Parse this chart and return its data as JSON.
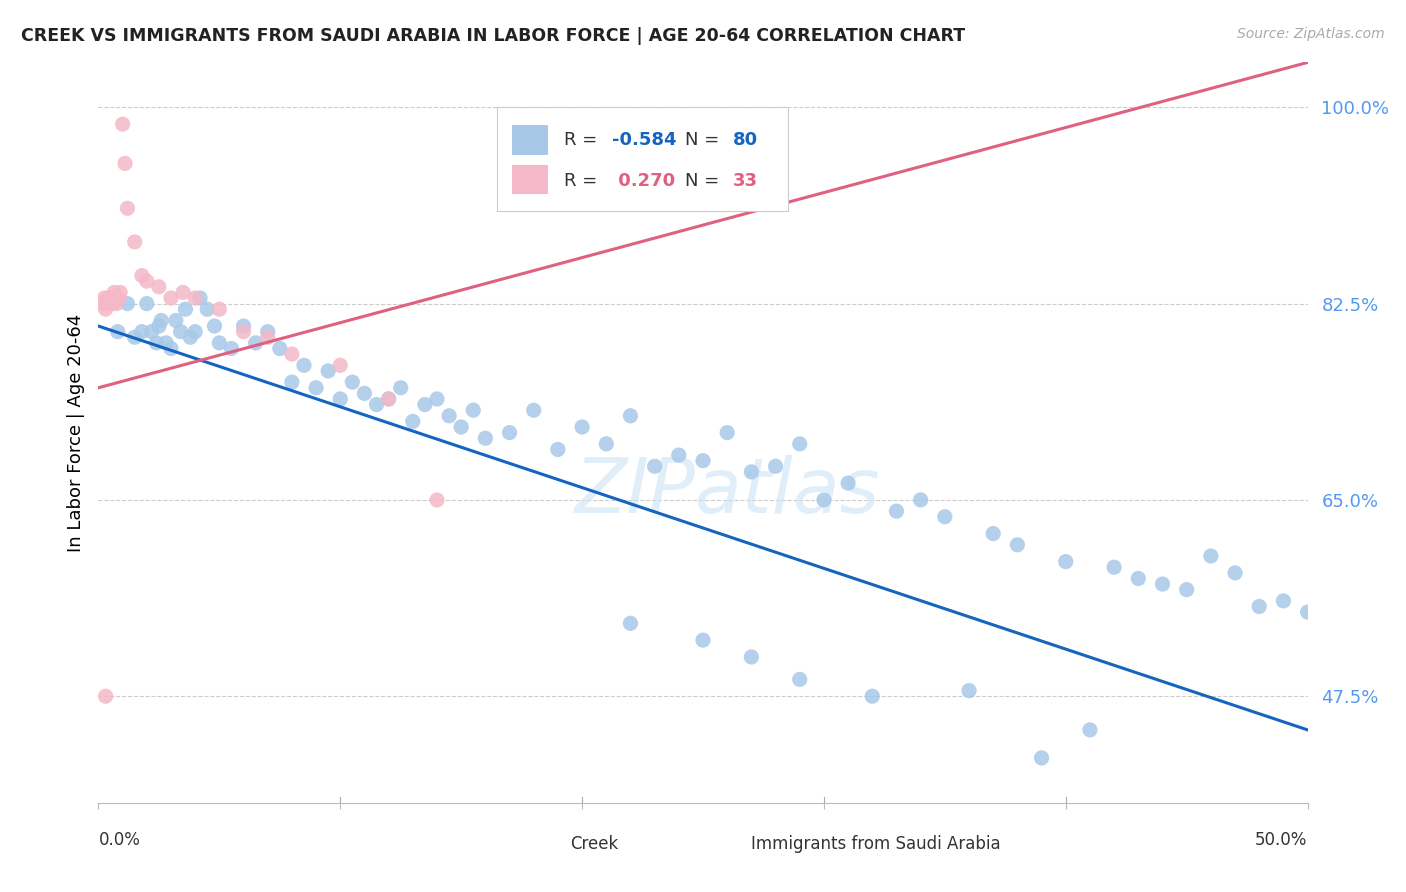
{
  "title": "CREEK VS IMMIGRANTS FROM SAUDI ARABIA IN LABOR FORCE | AGE 20-64 CORRELATION CHART",
  "source": "Source: ZipAtlas.com",
  "ylabel": "In Labor Force | Age 20-64",
  "x_range": [
    0.0,
    50.0
  ],
  "y_range": [
    38.0,
    104.0
  ],
  "y_ticks": [
    47.5,
    65.0,
    82.5,
    100.0
  ],
  "y_tick_labels": [
    "47.5%",
    "65.0%",
    "82.5%",
    "100.0%"
  ],
  "creek_color": "#a8c8e8",
  "creek_line_color": "#1565c0",
  "saudi_color": "#f4b8c8",
  "saudi_line_color": "#e06080",
  "creek_line_x0": 0.0,
  "creek_line_y0": 80.5,
  "creek_line_x1": 50.0,
  "creek_line_y1": 44.5,
  "saudi_line_x0": 0.0,
  "saudi_line_y0": 75.0,
  "saudi_line_x1": 50.0,
  "saudi_line_y1": 104.0,
  "creek_points_x": [
    0.8,
    1.2,
    1.5,
    1.8,
    2.0,
    2.2,
    2.4,
    2.5,
    2.6,
    2.8,
    3.0,
    3.2,
    3.4,
    3.6,
    3.8,
    4.0,
    4.2,
    4.5,
    4.8,
    5.0,
    5.5,
    6.0,
    6.5,
    7.0,
    7.5,
    8.0,
    8.5,
    9.0,
    9.5,
    10.0,
    10.5,
    11.0,
    11.5,
    12.0,
    12.5,
    13.0,
    13.5,
    14.0,
    14.5,
    15.0,
    15.5,
    16.0,
    17.0,
    18.0,
    19.0,
    20.0,
    21.0,
    22.0,
    23.0,
    24.0,
    25.0,
    26.0,
    27.0,
    28.0,
    29.0,
    30.0,
    31.0,
    33.0,
    34.0,
    35.0,
    37.0,
    38.0,
    40.0,
    42.0,
    43.0,
    44.0,
    45.0,
    46.0,
    47.0,
    48.0,
    49.0,
    50.0,
    22.0,
    25.0,
    27.0,
    29.0,
    32.0,
    36.0,
    39.0,
    41.0
  ],
  "creek_points_y": [
    80.0,
    82.5,
    79.5,
    80.0,
    82.5,
    80.0,
    79.0,
    80.5,
    81.0,
    79.0,
    78.5,
    81.0,
    80.0,
    82.0,
    79.5,
    80.0,
    83.0,
    82.0,
    80.5,
    79.0,
    78.5,
    80.5,
    79.0,
    80.0,
    78.5,
    75.5,
    77.0,
    75.0,
    76.5,
    74.0,
    75.5,
    74.5,
    73.5,
    74.0,
    75.0,
    72.0,
    73.5,
    74.0,
    72.5,
    71.5,
    73.0,
    70.5,
    71.0,
    73.0,
    69.5,
    71.5,
    70.0,
    72.5,
    68.0,
    69.0,
    68.5,
    71.0,
    67.5,
    68.0,
    70.0,
    65.0,
    66.5,
    64.0,
    65.0,
    63.5,
    62.0,
    61.0,
    59.5,
    59.0,
    58.0,
    57.5,
    57.0,
    60.0,
    58.5,
    55.5,
    56.0,
    55.0,
    54.0,
    52.5,
    51.0,
    49.0,
    47.5,
    48.0,
    42.0,
    44.5
  ],
  "saudi_points_x": [
    0.2,
    0.25,
    0.3,
    0.35,
    0.4,
    0.45,
    0.5,
    0.55,
    0.6,
    0.65,
    0.7,
    0.75,
    0.8,
    0.85,
    0.9,
    1.0,
    1.1,
    1.2,
    1.5,
    1.8,
    2.0,
    2.5,
    3.0,
    3.5,
    4.0,
    5.0,
    6.0,
    7.0,
    8.0,
    10.0,
    12.0,
    14.0,
    0.3
  ],
  "saudi_points_y": [
    82.5,
    83.0,
    82.0,
    82.5,
    83.0,
    83.0,
    82.5,
    83.0,
    82.5,
    83.5,
    83.0,
    82.5,
    83.0,
    83.0,
    83.5,
    98.5,
    95.0,
    91.0,
    88.0,
    85.0,
    84.5,
    84.0,
    83.0,
    83.5,
    83.0,
    82.0,
    80.0,
    79.5,
    78.0,
    77.0,
    74.0,
    65.0,
    47.5
  ]
}
